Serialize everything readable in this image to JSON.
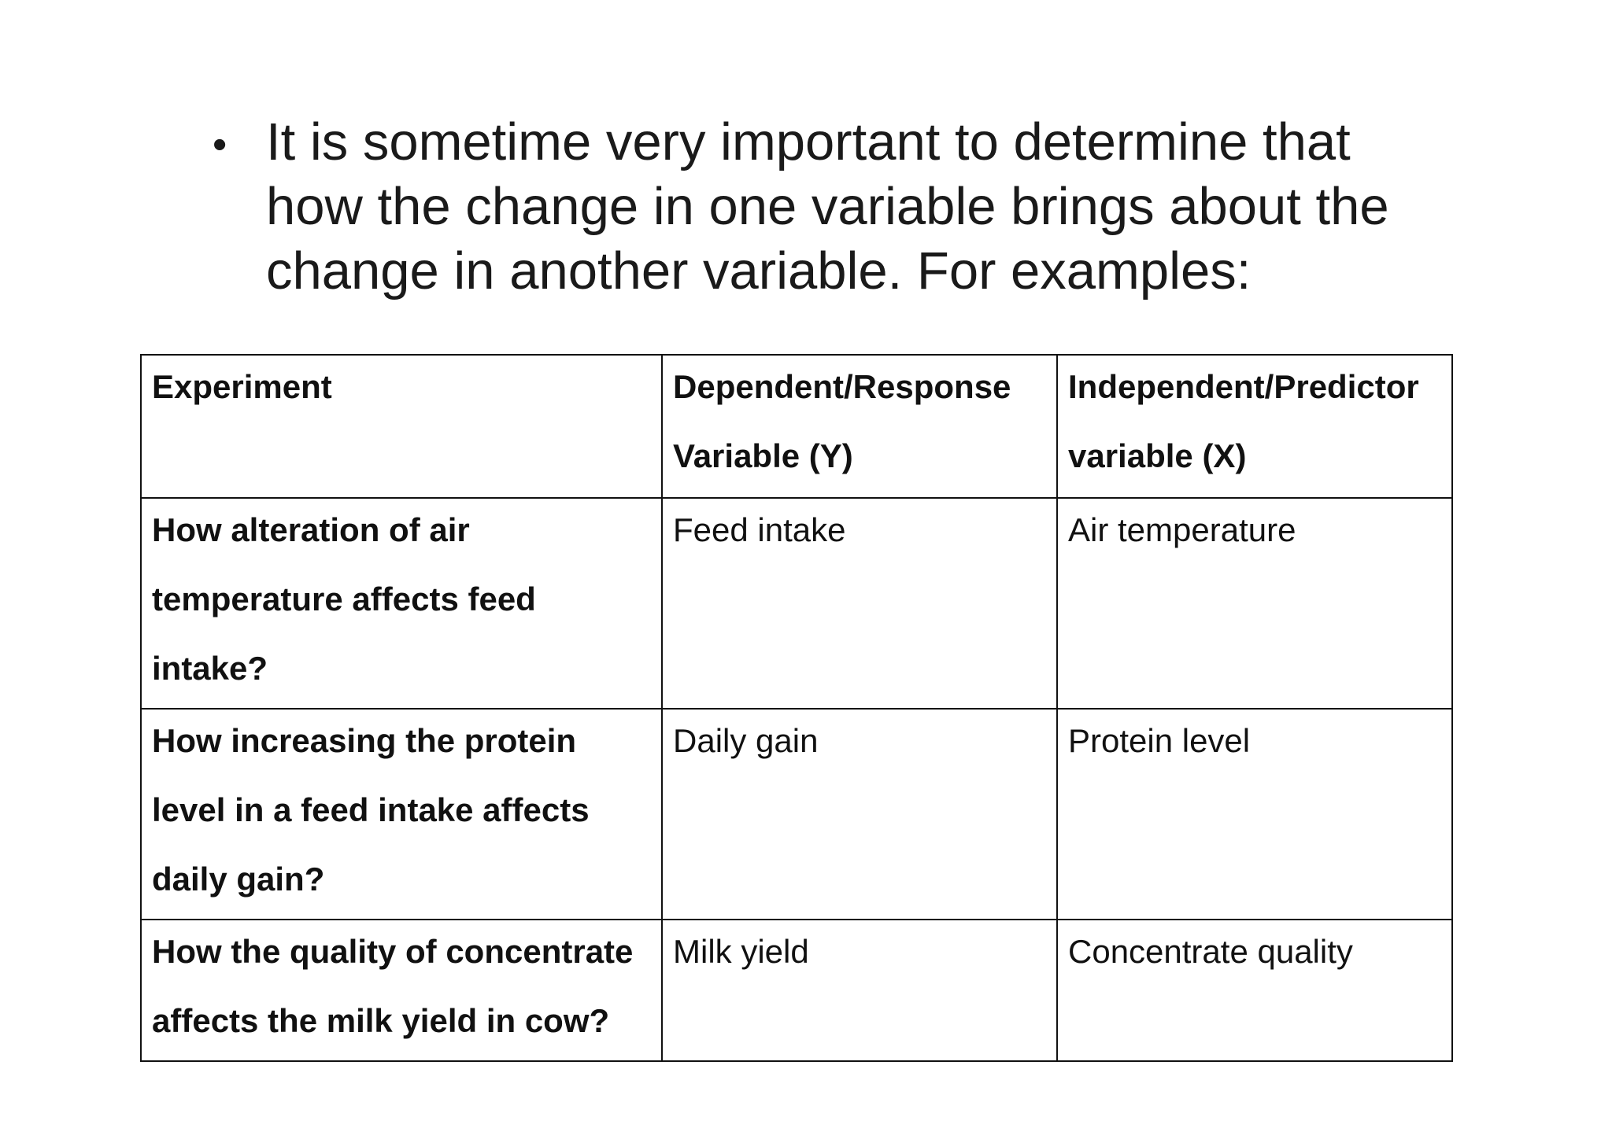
{
  "bullet": {
    "text": "It is sometime very important to determine that how the change in one variable brings about the change in another variable. For examples:"
  },
  "table": {
    "headers": [
      "Experiment",
      "Dependent/Response Variable (Y)",
      "Independent/Predictor variable (X)"
    ],
    "rows": [
      {
        "experiment": "How alteration of air temperature affects feed intake?",
        "dependent": "Feed intake",
        "independent": "Air temperature"
      },
      {
        "experiment": "How increasing the protein level in a feed intake affects daily gain?",
        "dependent": "Daily gain",
        "independent": "Protein level"
      },
      {
        "experiment": "How the quality of concentrate affects the milk yield in cow?",
        "dependent": "Milk yield",
        "independent": "Concentrate quality"
      }
    ]
  }
}
